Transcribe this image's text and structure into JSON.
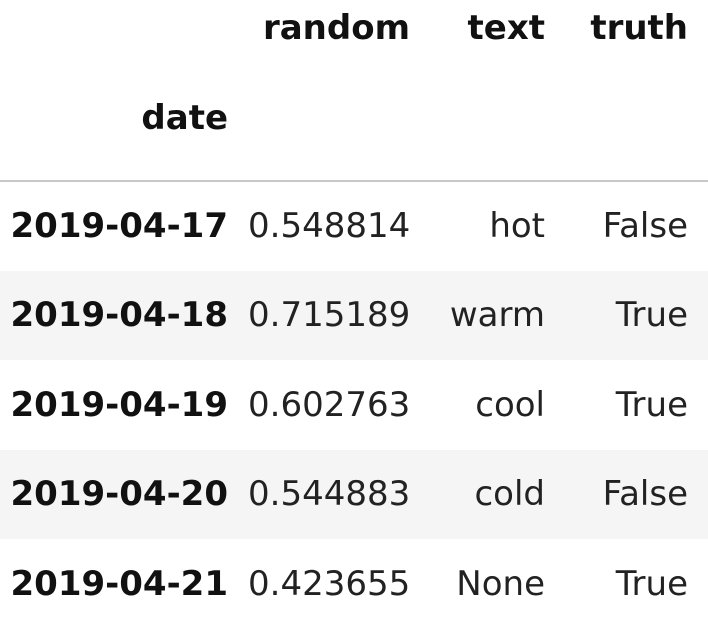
{
  "table": {
    "columns": [
      "random",
      "text",
      "truth"
    ],
    "index_name": "date",
    "rows": [
      {
        "date": "2019-04-17",
        "random": "0.548814",
        "text": "hot",
        "truth": "False"
      },
      {
        "date": "2019-04-18",
        "random": "0.715189",
        "text": "warm",
        "truth": "True"
      },
      {
        "date": "2019-04-19",
        "random": "0.602763",
        "text": "cool",
        "truth": "True"
      },
      {
        "date": "2019-04-20",
        "random": "0.544883",
        "text": "cold",
        "truth": "False"
      },
      {
        "date": "2019-04-21",
        "random": "0.423655",
        "text": "None",
        "truth": "True"
      }
    ]
  },
  "colors": {
    "text": "#111111",
    "stripe": "#f5f5f5",
    "divider": "#c8c8c8"
  }
}
